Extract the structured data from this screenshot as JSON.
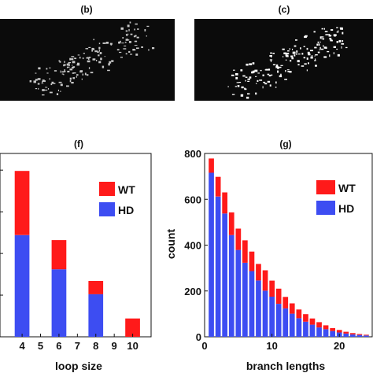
{
  "panels": {
    "b": {
      "label": "(b)"
    },
    "c": {
      "label": "(c)"
    }
  },
  "colors": {
    "wt": "#ff1a1a",
    "hd": "#3d4df2",
    "image_bg": "#0b0b0b",
    "speckle_b": "#c8c8c8",
    "speckle_c": "#ffffff"
  },
  "chart_data": [
    {
      "type": "bar",
      "stacked": true,
      "panel_label": "(f)",
      "xlabel": "loop size",
      "ylabel": "",
      "categories": [
        "4",
        "5",
        "6",
        "7",
        "8",
        "9",
        "10"
      ],
      "visible_tick_labels": [
        "4",
        "5",
        "6",
        "7",
        "8",
        "9",
        "10"
      ],
      "xlim": [
        2.8,
        11
      ],
      "ylim": [
        0,
        220
      ],
      "series": [
        {
          "name": "HD",
          "color": "#3d4df2",
          "values": [
            122,
            0,
            81,
            0,
            51,
            0,
            0
          ]
        },
        {
          "name": "WT",
          "color": "#ff1a1a",
          "values": [
            77,
            0,
            35,
            0,
            16,
            0,
            22
          ]
        }
      ],
      "legend_position": "top-right",
      "grid": false
    },
    {
      "type": "bar",
      "stacked": true,
      "panel_label": "(g)",
      "xlabel": "branch lengths",
      "ylabel": "count",
      "x": [
        1,
        2,
        3,
        4,
        5,
        6,
        7,
        8,
        9,
        10,
        11,
        12,
        13,
        14,
        15,
        16,
        17,
        18,
        19,
        20,
        21,
        22,
        23,
        24
      ],
      "yticks": [
        0,
        200,
        400,
        600,
        800
      ],
      "xticks": [
        0,
        10,
        20
      ],
      "xlim": [
        0,
        25
      ],
      "ylim": [
        0,
        800
      ],
      "series": [
        {
          "name": "HD",
          "color": "#3d4df2",
          "values": [
            716,
            612,
            538,
            444,
            379,
            323,
            287,
            246,
            201,
            175,
            144,
            124,
            101,
            81,
            66,
            53,
            41,
            33,
            25,
            19,
            14,
            10,
            8,
            6
          ]
        },
        {
          "name": "WT",
          "color": "#ff1a1a",
          "values": [
            62,
            86,
            92,
            99,
            93,
            98,
            85,
            72,
            89,
            70,
            66,
            50,
            45,
            38,
            33,
            27,
            23,
            17,
            13,
            11,
            8,
            6,
            4,
            3
          ]
        }
      ],
      "legend_position": "top-right",
      "grid": false
    }
  ]
}
